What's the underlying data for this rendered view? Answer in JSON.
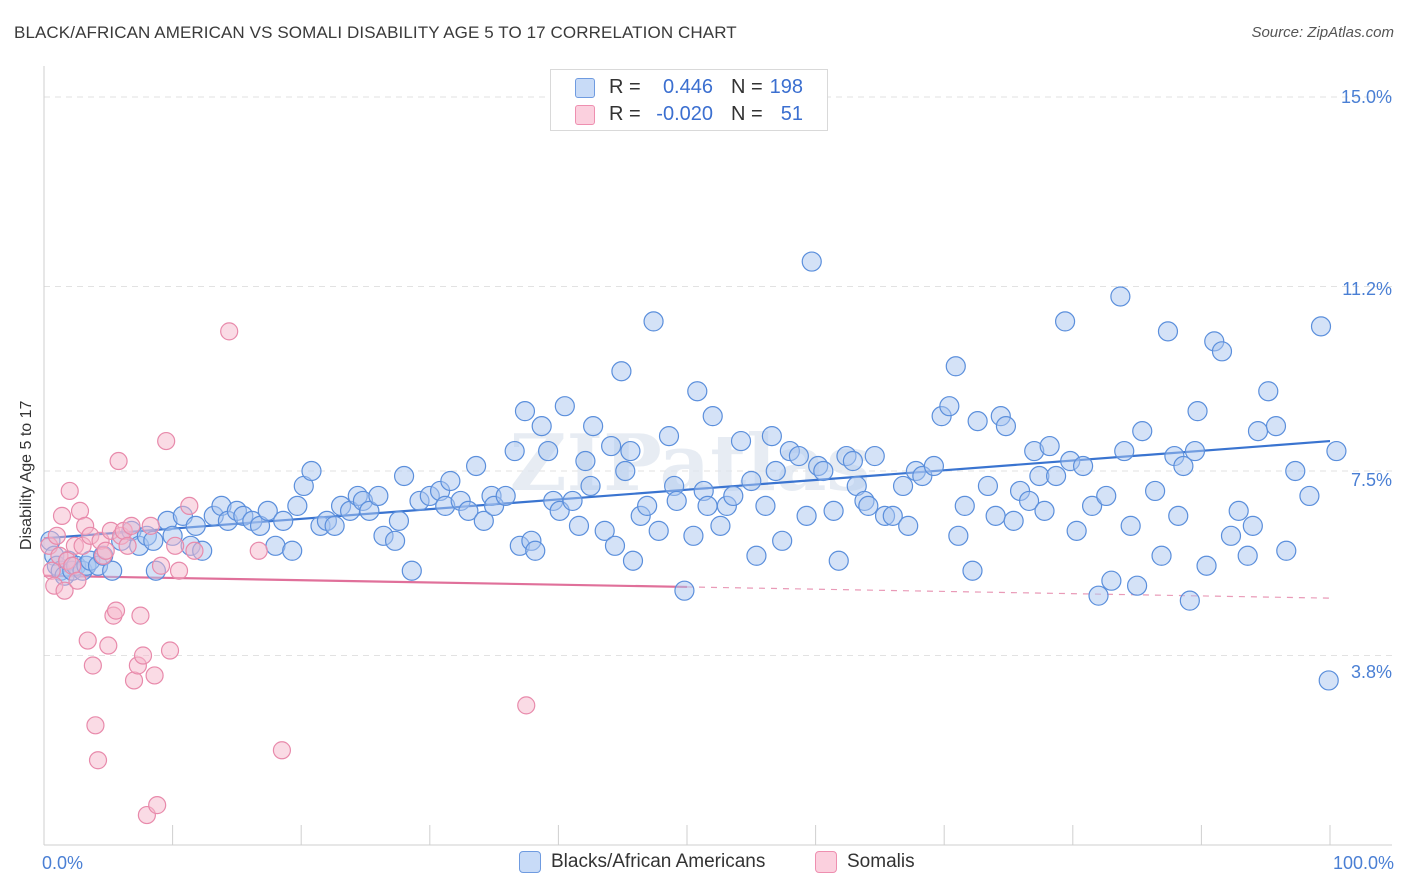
{
  "title": "BLACK/AFRICAN AMERICAN VS SOMALI DISABILITY AGE 5 TO 17 CORRELATION CHART",
  "source": "Source: ZipAtlas.com",
  "watermark": "ZIPatlas",
  "colors": {
    "blue": "#4a7fd4",
    "blue_fill": "#a9c6f0",
    "blue_line": "#3a74d0",
    "pink": "#e86f99",
    "pink_fill": "#f6b8cc",
    "pink_line": "#e0709a",
    "grid": "#dddddd"
  },
  "legend": {
    "rows": [
      {
        "r_label": "R =",
        "r_value": "0.446",
        "n_label": "N =",
        "n_value": "198"
      },
      {
        "r_label": "R =",
        "r_value": "-0.020",
        "n_label": "N =",
        "n_value": "51"
      }
    ]
  },
  "chart_data": {
    "type": "scatter",
    "title": "BLACK/AFRICAN AMERICAN VS SOMALI DISABILITY AGE 5 TO 17 CORRELATION CHART",
    "xlabel": "",
    "ylabel": "Disability Age 5 to 17",
    "x_tick_labels": [
      "0.0%",
      "100.0%"
    ],
    "y_tick_labels": [
      "3.8%",
      "7.5%",
      "11.2%",
      "15.0%"
    ],
    "y_ticks": [
      3.8,
      7.5,
      11.2,
      15.0
    ],
    "xlim": [
      0,
      100
    ],
    "ylim": [
      0,
      15.35
    ],
    "grid": true,
    "legend_placement": "top-center",
    "series": [
      {
        "name": "Blacks/African Americans",
        "color": "#4a7fd4",
        "r": 0.446,
        "n": 198,
        "trend": {
          "x": [
            0,
            100
          ],
          "y": [
            6.15,
            8.1
          ],
          "solid_to": 100
        },
        "points": [
          [
            0.5,
            6.1
          ],
          [
            0.8,
            5.8
          ],
          [
            1.0,
            5.6
          ],
          [
            1.3,
            5.5
          ],
          [
            1.6,
            5.4
          ],
          [
            1.9,
            5.7
          ],
          [
            2.2,
            5.5
          ],
          [
            2.5,
            5.6
          ],
          [
            3.0,
            5.5
          ],
          [
            3.3,
            5.6
          ],
          [
            3.6,
            5.7
          ],
          [
            4.2,
            5.6
          ],
          [
            4.6,
            5.8
          ],
          [
            5.3,
            5.5
          ],
          [
            6.0,
            6.1
          ],
          [
            6.8,
            6.3
          ],
          [
            7.4,
            6.0
          ],
          [
            8.0,
            6.2
          ],
          [
            8.5,
            6.1
          ],
          [
            8.7,
            5.5
          ],
          [
            9.6,
            6.5
          ],
          [
            10.0,
            6.2
          ],
          [
            10.8,
            6.6
          ],
          [
            11.4,
            6.0
          ],
          [
            11.8,
            6.4
          ],
          [
            12.3,
            5.9
          ],
          [
            13.2,
            6.6
          ],
          [
            13.8,
            6.8
          ],
          [
            14.3,
            6.5
          ],
          [
            15.0,
            6.7
          ],
          [
            15.5,
            6.6
          ],
          [
            16.2,
            6.5
          ],
          [
            16.8,
            6.4
          ],
          [
            17.4,
            6.7
          ],
          [
            18.0,
            6.0
          ],
          [
            18.6,
            6.5
          ],
          [
            19.3,
            5.9
          ],
          [
            19.7,
            6.8
          ],
          [
            20.2,
            7.2
          ],
          [
            20.8,
            7.5
          ],
          [
            21.5,
            6.4
          ],
          [
            22.0,
            6.5
          ],
          [
            22.6,
            6.4
          ],
          [
            23.1,
            6.8
          ],
          [
            23.8,
            6.7
          ],
          [
            24.4,
            7.0
          ],
          [
            24.8,
            6.9
          ],
          [
            25.3,
            6.7
          ],
          [
            26.0,
            7.0
          ],
          [
            26.4,
            6.2
          ],
          [
            27.3,
            6.1
          ],
          [
            27.6,
            6.5
          ],
          [
            28.0,
            7.4
          ],
          [
            28.6,
            5.5
          ],
          [
            29.2,
            6.9
          ],
          [
            30.0,
            7.0
          ],
          [
            30.8,
            7.1
          ],
          [
            31.2,
            6.8
          ],
          [
            31.6,
            7.3
          ],
          [
            32.4,
            6.9
          ],
          [
            33.0,
            6.7
          ],
          [
            33.6,
            7.6
          ],
          [
            34.2,
            6.5
          ],
          [
            34.8,
            7.0
          ],
          [
            35.0,
            6.8
          ],
          [
            35.9,
            7.0
          ],
          [
            36.6,
            7.9
          ],
          [
            37.0,
            6.0
          ],
          [
            37.4,
            8.7
          ],
          [
            37.9,
            6.1
          ],
          [
            38.2,
            5.9
          ],
          [
            38.7,
            8.4
          ],
          [
            39.2,
            7.9
          ],
          [
            39.6,
            6.9
          ],
          [
            40.1,
            6.7
          ],
          [
            40.5,
            8.8
          ],
          [
            41.1,
            6.9
          ],
          [
            41.6,
            6.4
          ],
          [
            42.1,
            7.7
          ],
          [
            42.5,
            7.2
          ],
          [
            42.7,
            8.4
          ],
          [
            43.6,
            6.3
          ],
          [
            44.1,
            8.0
          ],
          [
            44.4,
            6.0
          ],
          [
            44.9,
            9.5
          ],
          [
            45.2,
            7.5
          ],
          [
            45.6,
            7.9
          ],
          [
            45.8,
            5.7
          ],
          [
            46.4,
            6.6
          ],
          [
            46.9,
            6.8
          ],
          [
            47.4,
            10.5
          ],
          [
            47.8,
            6.3
          ],
          [
            48.6,
            8.2
          ],
          [
            49.0,
            7.2
          ],
          [
            49.2,
            6.9
          ],
          [
            49.8,
            5.1
          ],
          [
            50.5,
            6.2
          ],
          [
            50.8,
            9.1
          ],
          [
            51.3,
            7.1
          ],
          [
            51.6,
            6.8
          ],
          [
            52.0,
            8.6
          ],
          [
            52.6,
            6.4
          ],
          [
            53.1,
            6.8
          ],
          [
            53.6,
            7.0
          ],
          [
            54.2,
            8.1
          ],
          [
            55.0,
            7.3
          ],
          [
            55.4,
            5.8
          ],
          [
            56.1,
            6.8
          ],
          [
            56.6,
            8.2
          ],
          [
            56.9,
            7.5
          ],
          [
            57.4,
            6.1
          ],
          [
            58.0,
            7.9
          ],
          [
            58.7,
            7.8
          ],
          [
            59.3,
            6.6
          ],
          [
            59.7,
            11.7
          ],
          [
            60.2,
            7.6
          ],
          [
            60.6,
            7.5
          ],
          [
            61.4,
            6.7
          ],
          [
            61.8,
            5.7
          ],
          [
            62.4,
            7.8
          ],
          [
            62.9,
            7.7
          ],
          [
            63.2,
            7.2
          ],
          [
            63.8,
            6.9
          ],
          [
            64.1,
            6.8
          ],
          [
            64.6,
            7.8
          ],
          [
            65.4,
            6.6
          ],
          [
            66.0,
            6.6
          ],
          [
            66.8,
            7.2
          ],
          [
            67.2,
            6.4
          ],
          [
            67.8,
            7.5
          ],
          [
            68.3,
            7.4
          ],
          [
            69.2,
            7.6
          ],
          [
            69.8,
            8.6
          ],
          [
            70.4,
            8.8
          ],
          [
            70.9,
            9.6
          ],
          [
            71.1,
            6.2
          ],
          [
            71.6,
            6.8
          ],
          [
            72.2,
            5.5
          ],
          [
            72.6,
            8.5
          ],
          [
            73.4,
            7.2
          ],
          [
            74.0,
            6.6
          ],
          [
            74.4,
            8.6
          ],
          [
            74.8,
            8.4
          ],
          [
            75.4,
            6.5
          ],
          [
            75.9,
            7.1
          ],
          [
            76.6,
            6.9
          ],
          [
            77.0,
            7.9
          ],
          [
            77.4,
            7.4
          ],
          [
            77.8,
            6.7
          ],
          [
            78.2,
            8.0
          ],
          [
            78.7,
            7.4
          ],
          [
            79.4,
            10.5
          ],
          [
            79.8,
            7.7
          ],
          [
            80.3,
            6.3
          ],
          [
            80.8,
            7.6
          ],
          [
            81.5,
            6.8
          ],
          [
            82.0,
            5.0
          ],
          [
            82.6,
            7.0
          ],
          [
            83.0,
            5.3
          ],
          [
            83.7,
            11.0
          ],
          [
            84.0,
            7.9
          ],
          [
            84.5,
            6.4
          ],
          [
            85.0,
            5.2
          ],
          [
            85.4,
            8.3
          ],
          [
            86.4,
            7.1
          ],
          [
            86.9,
            5.8
          ],
          [
            87.4,
            10.3
          ],
          [
            87.9,
            7.8
          ],
          [
            88.2,
            6.6
          ],
          [
            88.6,
            7.6
          ],
          [
            89.1,
            4.9
          ],
          [
            89.5,
            7.9
          ],
          [
            89.7,
            8.7
          ],
          [
            90.4,
            5.6
          ],
          [
            91.0,
            10.1
          ],
          [
            91.6,
            9.9
          ],
          [
            92.3,
            6.2
          ],
          [
            92.9,
            6.7
          ],
          [
            93.6,
            5.8
          ],
          [
            94.0,
            6.4
          ],
          [
            94.4,
            8.3
          ],
          [
            95.2,
            9.1
          ],
          [
            95.8,
            8.4
          ],
          [
            96.6,
            5.9
          ],
          [
            97.3,
            7.5
          ],
          [
            98.4,
            7.0
          ],
          [
            99.3,
            10.4
          ],
          [
            99.9,
            3.3
          ],
          [
            100.5,
            7.9
          ]
        ]
      },
      {
        "name": "Somalis",
        "color": "#e86f99",
        "r": -0.02,
        "n": 51,
        "trend": {
          "x": [
            0,
            100
          ],
          "y": [
            5.4,
            4.95
          ],
          "solid_to": 50
        },
        "points": [
          [
            0.4,
            6.0
          ],
          [
            0.6,
            5.5
          ],
          [
            0.8,
            5.2
          ],
          [
            1.0,
            6.2
          ],
          [
            1.2,
            5.8
          ],
          [
            1.4,
            6.6
          ],
          [
            1.6,
            5.1
          ],
          [
            1.8,
            5.7
          ],
          [
            2.0,
            7.1
          ],
          [
            2.2,
            5.6
          ],
          [
            2.4,
            6.0
          ],
          [
            2.6,
            5.3
          ],
          [
            2.8,
            6.7
          ],
          [
            3.0,
            6.0
          ],
          [
            3.2,
            6.4
          ],
          [
            3.4,
            4.1
          ],
          [
            3.6,
            6.2
          ],
          [
            3.8,
            3.6
          ],
          [
            4.0,
            2.4
          ],
          [
            4.2,
            1.7
          ],
          [
            4.4,
            6.1
          ],
          [
            4.6,
            5.8
          ],
          [
            4.8,
            5.9
          ],
          [
            5.0,
            4.0
          ],
          [
            5.2,
            6.3
          ],
          [
            5.4,
            4.6
          ],
          [
            5.6,
            4.7
          ],
          [
            5.8,
            7.7
          ],
          [
            6.0,
            6.2
          ],
          [
            6.2,
            6.3
          ],
          [
            6.5,
            6.0
          ],
          [
            6.8,
            6.4
          ],
          [
            7.0,
            3.3
          ],
          [
            7.3,
            3.6
          ],
          [
            7.5,
            4.6
          ],
          [
            7.7,
            3.8
          ],
          [
            8.0,
            0.6
          ],
          [
            8.3,
            6.4
          ],
          [
            8.6,
            3.4
          ],
          [
            8.8,
            0.8
          ],
          [
            9.1,
            5.6
          ],
          [
            9.5,
            8.1
          ],
          [
            9.8,
            3.9
          ],
          [
            10.2,
            6.0
          ],
          [
            10.5,
            5.5
          ],
          [
            11.3,
            6.8
          ],
          [
            11.7,
            5.9
          ],
          [
            14.4,
            10.3
          ],
          [
            16.7,
            5.9
          ],
          [
            18.5,
            1.9
          ],
          [
            37.5,
            2.8
          ]
        ]
      }
    ]
  },
  "bottom_legend": {
    "items": [
      {
        "label": "Blacks/African Americans"
      },
      {
        "label": "Somalis"
      }
    ]
  }
}
